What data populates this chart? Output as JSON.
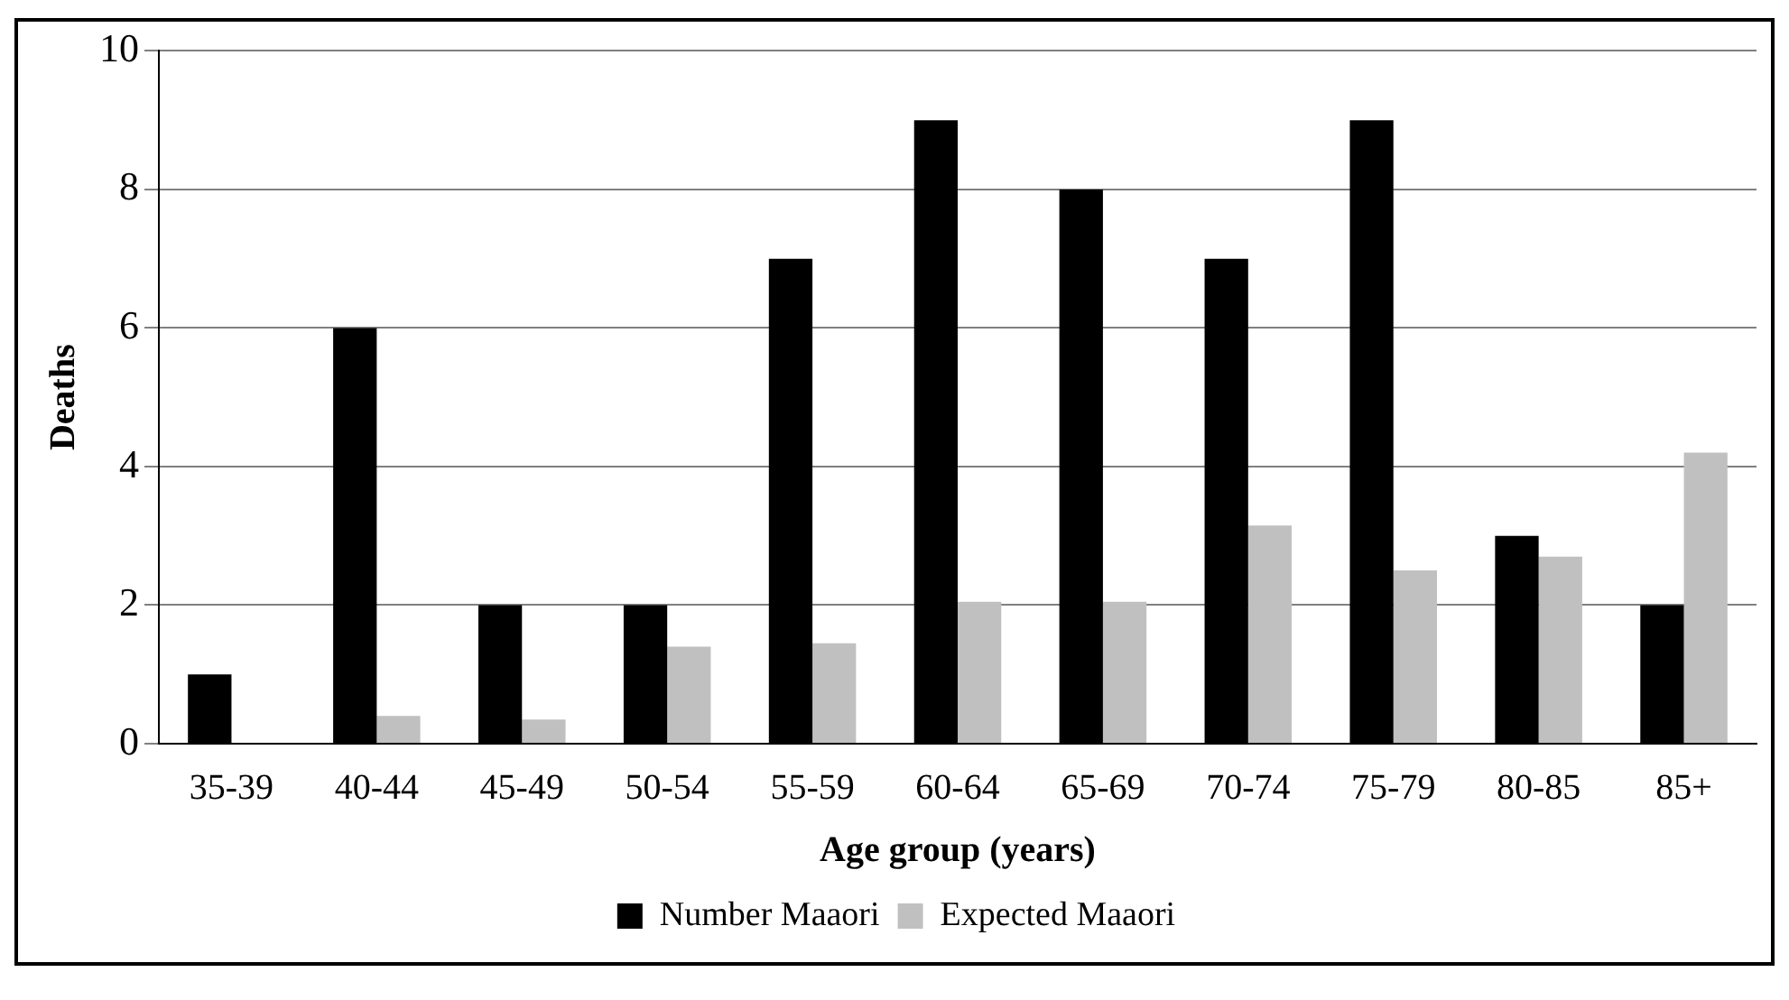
{
  "chart_data": {
    "type": "bar",
    "xlabel": "Age group (years)",
    "ylabel": "Deaths",
    "categories": [
      "35-39",
      "40-44",
      "45-49",
      "50-54",
      "55-59",
      "60-64",
      "65-69",
      "70-74",
      "75-79",
      "80-85",
      "85+"
    ],
    "series": [
      {
        "name": "Number Maaori",
        "color": "#000000",
        "values": [
          1,
          6,
          2,
          2,
          7,
          9,
          8,
          7,
          9,
          3,
          2
        ]
      },
      {
        "name": "Expected Maaori",
        "color": "#c0c0c0",
        "values": [
          null,
          0.4,
          0.35,
          1.4,
          1.45,
          2.05,
          2.05,
          3.15,
          2.5,
          2.7,
          4.2
        ]
      }
    ],
    "ylim": [
      0,
      10
    ],
    "yticks": [
      0,
      2,
      4,
      6,
      8,
      10
    ],
    "grid": "y",
    "legend": "bottom"
  }
}
